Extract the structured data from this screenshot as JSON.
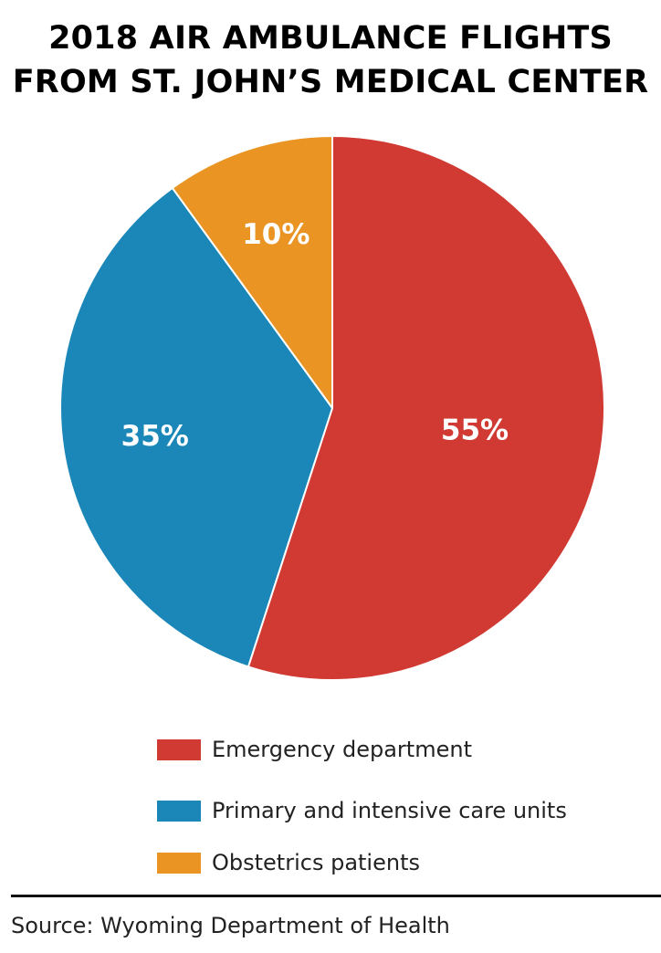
{
  "chart_data": {
    "type": "pie",
    "title": [
      "2018 AIR AMBULANCE FLIGHTS",
      "FROM ST. JOHN’S MEDICAL CENTER"
    ],
    "slices": [
      {
        "name": "Emergency department",
        "value": 55,
        "label": "55%",
        "color": "#d03a32"
      },
      {
        "name": "Primary and intensive care units",
        "value": 35,
        "label": "35%",
        "color": "#1a87b8"
      },
      {
        "name": "Obstetrics patients",
        "value": 10,
        "label": "10%",
        "color": "#ea9424"
      }
    ],
    "start_direction": "12 o'clock, clockwise",
    "legend_position": "bottom"
  },
  "source": "Source: Wyoming Department of Health"
}
